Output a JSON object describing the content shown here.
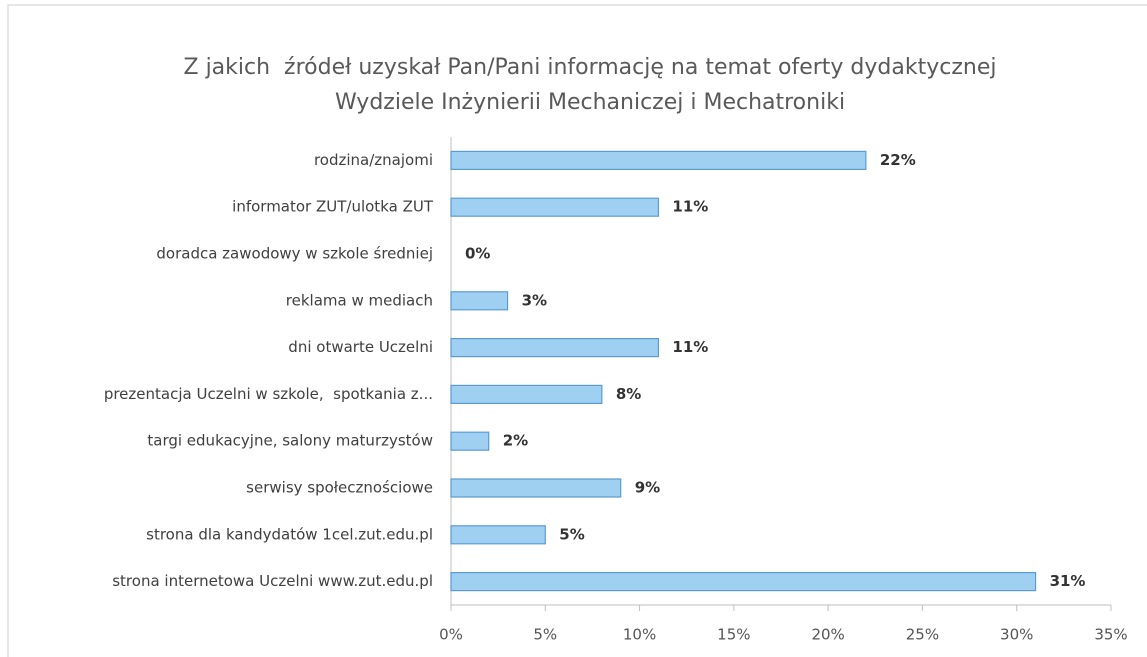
{
  "chart_data": {
    "type": "bar",
    "orientation": "horizontal",
    "title": [
      "Z jakich  źródeł uzyskał Pan/Pani informację na temat oferty dydaktycznej",
      "Wydziele Inżynierii Mechaniczej i Mechatroniki"
    ],
    "categories": [
      "rodzina/znajomi",
      "informator ZUT/ulotka ZUT",
      "doradca zawodowy w szkole średniej",
      "reklama w mediach",
      "dni otwarte Uczelni",
      "prezentacja Uczelni w szkole,  spotkania z...",
      "targi edukacyjne, salony maturzystów",
      "serwisy społecznościowe",
      "strona dla kandydatów 1cel.zut.edu.pl",
      "strona internetowa Uczelni www.zut.edu.pl"
    ],
    "values": [
      22,
      11,
      0,
      3,
      11,
      8,
      2,
      9,
      5,
      31
    ],
    "value_labels": [
      "22%",
      "11%",
      "0%",
      "3%",
      "11%",
      "8%",
      "2%",
      "9%",
      "5%",
      "31%"
    ],
    "color": "#9fd0f2",
    "xlim": [
      0,
      35
    ],
    "xticks": [
      {
        "value": 0,
        "label": "0%"
      },
      {
        "value": 5,
        "label": "5%"
      },
      {
        "value": 10,
        "label": "10%"
      },
      {
        "value": 15,
        "label": "15%"
      },
      {
        "value": 20,
        "label": "20%"
      },
      {
        "value": 25,
        "label": "25%"
      },
      {
        "value": 30,
        "label": "30%"
      },
      {
        "value": 35,
        "label": "35%"
      }
    ],
    "grid": false
  }
}
